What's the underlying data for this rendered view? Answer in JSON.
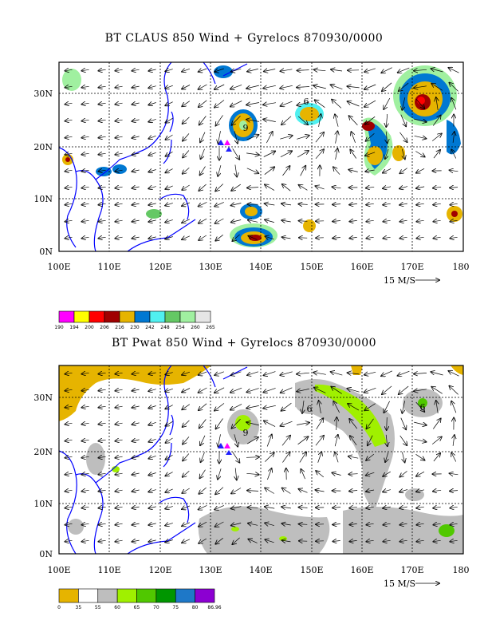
{
  "map1": {
    "title": "BT CLAUS 850 Wind + Gyrelocs 870930/0000",
    "x_ticks": [
      "100E",
      "110E",
      "120E",
      "130E",
      "140E",
      "150E",
      "160E",
      "170E",
      "180"
    ],
    "y_ticks": [
      "0N",
      "10N",
      "20N",
      "30N"
    ],
    "scale_label": "15 M/S",
    "storm_labels": [
      "6",
      "9"
    ],
    "colorbar": {
      "labels": [
        "190",
        "194",
        "200",
        "206",
        "216",
        "230",
        "242",
        "248",
        "254",
        "260",
        "265"
      ],
      "colors": [
        "#ff00ff",
        "#ffff00",
        "#ff0000",
        "#a00000",
        "#e6b400",
        "#0078d2",
        "#50f0f0",
        "#64c864",
        "#a0f0a0",
        "#e6e6e6"
      ]
    }
  },
  "map2": {
    "title": "BT Pwat 850 Wind + Gyrelocs 870930/0000",
    "x_ticks": [
      "100E",
      "110E",
      "120E",
      "130E",
      "140E",
      "150E",
      "160E",
      "170E",
      "180"
    ],
    "y_ticks": [
      "0N",
      "10N",
      "20N",
      "30N"
    ],
    "scale_label": "15 M/S",
    "storm_labels": [
      "6",
      "9"
    ],
    "colorbar": {
      "labels": [
        "0",
        "35",
        "55",
        "60",
        "65",
        "70",
        "75",
        "80",
        "86.96"
      ],
      "colors": [
        "#e6b400",
        "#ffffff",
        "#bebebe",
        "#a0f000",
        "#50c800",
        "#009600",
        "#1e78c8",
        "#8c00d2"
      ]
    }
  }
}
